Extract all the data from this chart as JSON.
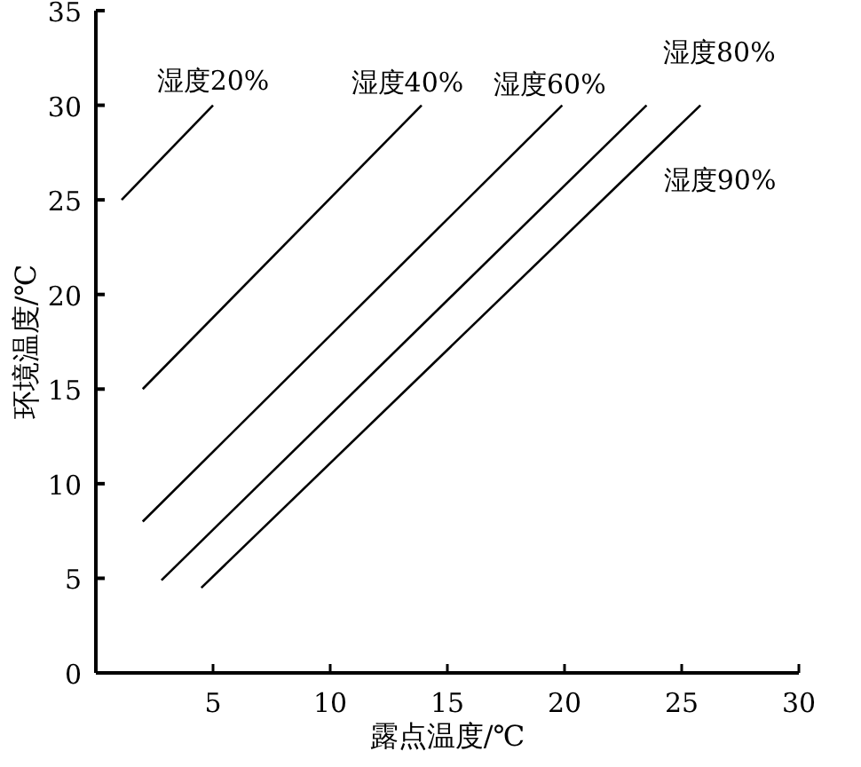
{
  "chart_data": {
    "type": "line",
    "xlabel": "露点温度/℃",
    "ylabel": "环境温度/℃",
    "xlim": [
      0,
      30
    ],
    "ylim": [
      0,
      35
    ],
    "xticks": [
      5,
      10,
      15,
      20,
      25,
      30
    ],
    "yticks": [
      0,
      5,
      10,
      15,
      20,
      25,
      30,
      35
    ],
    "marker": "none",
    "line_style": "solid",
    "grid": false,
    "series": [
      {
        "name": "湿度20%",
        "color": "#000000",
        "x": [
          1.1,
          5.0
        ],
        "values": [
          25,
          30
        ]
      },
      {
        "name": "湿度40%",
        "color": "#000000",
        "x": [
          2.0,
          13.9
        ],
        "values": [
          15,
          30
        ]
      },
      {
        "name": "湿度60%",
        "color": "#000000",
        "x": [
          2.0,
          19.9
        ],
        "values": [
          8,
          30
        ]
      },
      {
        "name": "湿度80%",
        "color": "#000000",
        "x": [
          2.8,
          23.5
        ],
        "values": [
          4.9,
          30
        ]
      },
      {
        "name": "湿度90%",
        "color": "#000000",
        "x": [
          4.5,
          25.8
        ],
        "values": [
          4.5,
          30
        ]
      }
    ]
  }
}
